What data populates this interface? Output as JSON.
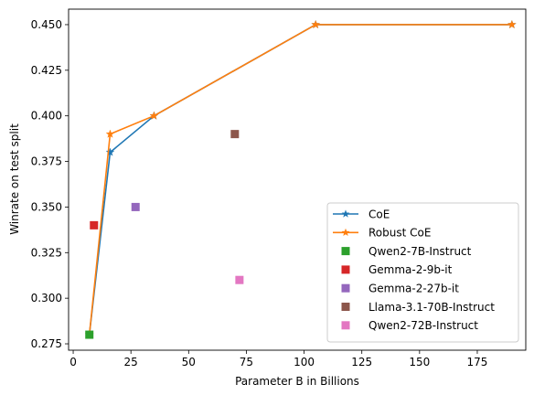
{
  "chart_data": {
    "type": "line",
    "xlabel": "Parameter B in Billions",
    "ylabel": "Winrate on test split",
    "xlim": [
      -2,
      196
    ],
    "ylim": [
      0.2715,
      0.4585
    ],
    "xticks": [
      0,
      25,
      50,
      75,
      100,
      125,
      150,
      175
    ],
    "yticks": [
      0.275,
      0.3,
      0.325,
      0.35,
      0.375,
      0.4,
      0.425,
      0.45
    ],
    "ytick_labels": [
      "0.275",
      "0.300",
      "0.325",
      "0.350",
      "0.375",
      "0.400",
      "0.425",
      "0.450"
    ],
    "grid": false,
    "legend_position": "lower-right",
    "lines": [
      {
        "name": "CoE",
        "color": "#1f77b4",
        "marker": "star",
        "x": [
          7,
          16,
          35,
          105,
          190
        ],
        "y": [
          0.28,
          0.38,
          0.4,
          0.45,
          0.45
        ]
      },
      {
        "name": "Robust CoE",
        "color": "#ff7f0e",
        "marker": "star",
        "x": [
          7,
          16,
          35,
          105,
          190
        ],
        "y": [
          0.28,
          0.39,
          0.4,
          0.45,
          0.45
        ]
      }
    ],
    "points": [
      {
        "name": "Qwen2-7B-Instruct",
        "color": "#2ca02c",
        "marker": "square",
        "x": 7,
        "y": 0.28
      },
      {
        "name": "Gemma-2-9b-it",
        "color": "#d62728",
        "marker": "square",
        "x": 9,
        "y": 0.34
      },
      {
        "name": "Gemma-2-27b-it",
        "color": "#9467bd",
        "marker": "square",
        "x": 27,
        "y": 0.35
      },
      {
        "name": "Llama-3.1-70B-Instruct",
        "color": "#8c564b",
        "marker": "square",
        "x": 70,
        "y": 0.39
      },
      {
        "name": "Qwen2-72B-Instruct",
        "color": "#e377c2",
        "marker": "square",
        "x": 72,
        "y": 0.31
      }
    ]
  }
}
